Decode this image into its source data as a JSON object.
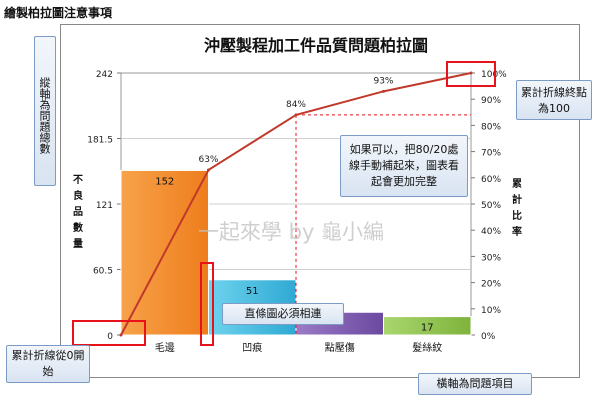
{
  "page": {
    "title": "繪製柏拉圖注意事項",
    "watermark": "一起來學 by 龜小編"
  },
  "callouts": {
    "y_axis_note": "縱軸為問題總數",
    "end_note": "累計折線終點為100",
    "fill_note": "如果可以，把80/20處線手動補起來，圖表看起會更加完整",
    "bars_note": "直條圖必須相連",
    "start_note": "累計折線從0開始",
    "x_axis_note": "橫軸為問題項目"
  },
  "colors": {
    "bar_gradients": [
      [
        "#f7a24a",
        "#ee7d1c"
      ],
      [
        "#6ed3ee",
        "#2fa9d3"
      ],
      [
        "#9b7ac6",
        "#6b49a0"
      ],
      [
        "#a9d66e",
        "#7eb33c"
      ]
    ],
    "line": "#c0392b",
    "highlight": "#e8121b",
    "callout_border": "#7a9cc6"
  },
  "chart_data": {
    "type": "bar",
    "title": "沖壓製程加工件品質問題柏拉圖",
    "categories": [
      "毛邊",
      "凹痕",
      "點壓傷",
      "髮絲紋"
    ],
    "values": [
      152,
      51,
      21,
      17
    ],
    "value_labels": [
      "152",
      "51",
      "",
      "17"
    ],
    "cumulative_percent": [
      0,
      63,
      84,
      93,
      100
    ],
    "cumulative_labels": [
      "",
      "63%",
      "84%",
      "93%",
      ""
    ],
    "ylabel": "不良品數量",
    "y2label": "累計比率",
    "ylim": [
      0,
      242
    ],
    "yticks": [
      0,
      60.5,
      121,
      181.5,
      242
    ],
    "ytick_labels": [
      "0",
      "60.5",
      "121",
      "181.5",
      "242"
    ],
    "y2lim": [
      0,
      100
    ],
    "y2ticks": [
      0,
      10,
      20,
      30,
      40,
      50,
      60,
      70,
      80,
      90,
      100
    ],
    "y2tick_labels": [
      "0%",
      "10%",
      "20%",
      "30%",
      "40%",
      "50%",
      "60%",
      "70%",
      "80%",
      "90%",
      "100%"
    ],
    "grid": true,
    "guide_line_percent": 84
  }
}
